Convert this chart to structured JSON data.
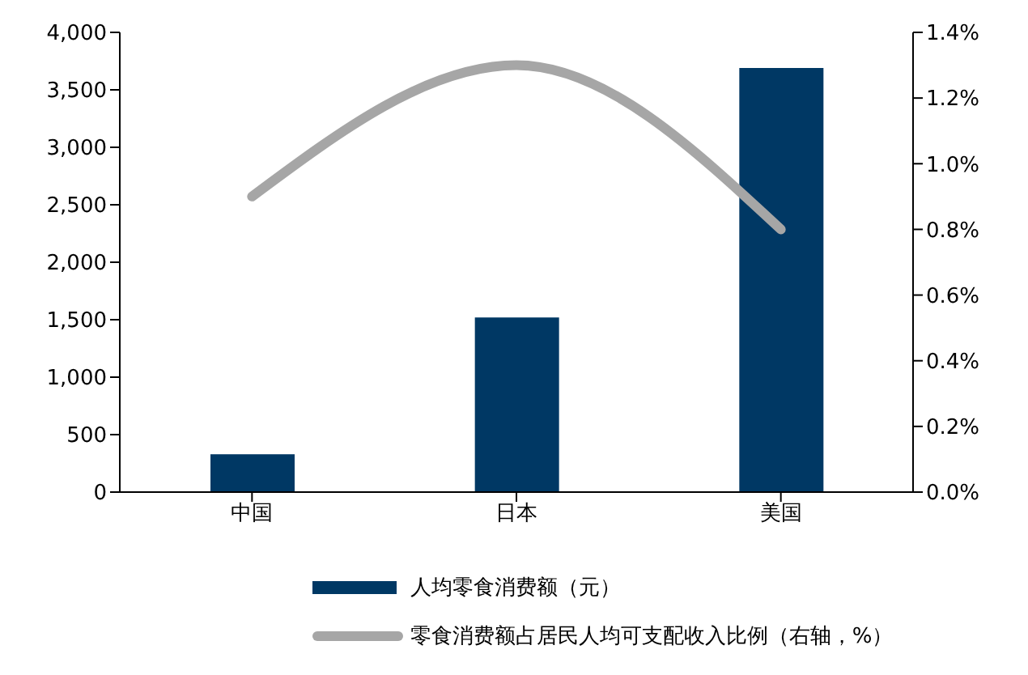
{
  "chart_data": {
    "type": "bar",
    "categories": [
      "中国",
      "日本",
      "美国"
    ],
    "series": [
      {
        "name": "人均零食消费额（元）",
        "color": "#003864",
        "values": [
          330,
          1520,
          3690
        ]
      },
      {
        "name": "零食消费额占居民人均可支配收入比例（右轴，%）",
        "type": "line",
        "axis": "y2",
        "color": "#a6a6a6",
        "values": [
          0.9,
          1.3,
          0.8
        ]
      }
    ],
    "ylim": [
      0,
      4000
    ],
    "yticks": [
      0,
      500,
      {
        "value": 1000,
        "label": "1,000"
      },
      {
        "value": 1500,
        "label": "1,500"
      },
      {
        "value": 2000,
        "label": "2,000"
      },
      {
        "value": 2500,
        "label": "2,500"
      },
      {
        "value": 3000,
        "label": "3,000"
      },
      {
        "value": 3500,
        "label": "3,500"
      },
      {
        "value": 4000,
        "label": "4,000"
      }
    ],
    "y2lim": [
      0,
      1.4
    ],
    "y2ticks": [
      {
        "value": 0,
        "label": "0.0%"
      },
      {
        "value": 0.2,
        "label": "0.2%"
      },
      {
        "value": 0.4,
        "label": "0.4%"
      },
      {
        "value": 0.6,
        "label": "0.6%"
      },
      {
        "value": 0.8,
        "label": "0.8%"
      },
      {
        "value": 1.0,
        "label": "1.0%"
      },
      {
        "value": 1.2,
        "label": "1.2%"
      },
      {
        "value": 1.4,
        "label": "1.4%"
      }
    ],
    "grid": false,
    "legend": "bottom",
    "marker": "none"
  }
}
